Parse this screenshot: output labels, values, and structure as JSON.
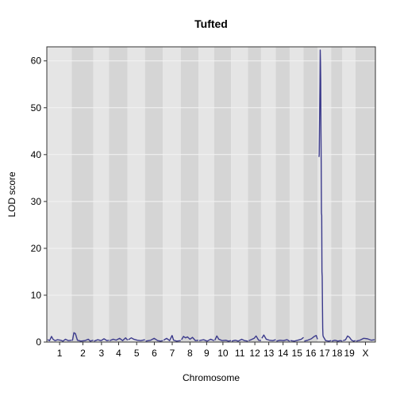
{
  "chart_data": {
    "type": "line",
    "title": "Tufted",
    "xlabel": "Chromosome",
    "ylabel": "LOD score",
    "ylim": [
      0,
      63
    ],
    "yticks": [
      0,
      10,
      20,
      30,
      40,
      50,
      60
    ],
    "grid": true,
    "chromosomes": [
      "1",
      "2",
      "3",
      "4",
      "5",
      "6",
      "7",
      "8",
      "9",
      "10",
      "11",
      "12",
      "13",
      "14",
      "15",
      "16",
      "17",
      "18",
      "19",
      "X"
    ],
    "chromosome_lengths_cM": [
      97,
      84,
      60,
      72,
      67,
      69,
      69,
      68,
      60,
      65,
      65,
      50,
      56,
      53,
      53,
      53,
      52,
      42,
      50,
      74
    ],
    "colors": {
      "line": "#3b3a8c",
      "band_light": "#e5e5e5",
      "band_dark": "#d5d5d5",
      "gridline": "#f4f4f4"
    },
    "series": [
      {
        "values_by_chromosome": [
          [
            [
              0,
              0.5
            ],
            [
              8,
              0.3
            ],
            [
              16,
              1.2
            ],
            [
              22,
              0.6
            ],
            [
              30,
              0.3
            ],
            [
              40,
              0.5
            ],
            [
              52,
              0.4
            ],
            [
              62,
              0.2
            ],
            [
              72,
              0.6
            ],
            [
              84,
              0.3
            ],
            [
              97,
              0.4
            ]
          ],
          [
            [
              0,
              0.3
            ],
            [
              6,
              2.0
            ],
            [
              12,
              1.8
            ],
            [
              20,
              0.4
            ],
            [
              34,
              0.2
            ],
            [
              50,
              0.3
            ],
            [
              64,
              0.6
            ],
            [
              72,
              0.2
            ],
            [
              84,
              0.4
            ]
          ],
          [
            [
              0,
              0.2
            ],
            [
              15,
              0.5
            ],
            [
              28,
              0.3
            ],
            [
              40,
              0.7
            ],
            [
              52,
              0.3
            ],
            [
              60,
              0.4
            ]
          ],
          [
            [
              0,
              0.3
            ],
            [
              14,
              0.6
            ],
            [
              26,
              0.4
            ],
            [
              40,
              0.8
            ],
            [
              52,
              0.3
            ],
            [
              64,
              0.9
            ],
            [
              72,
              0.4
            ]
          ],
          [
            [
              0,
              0.5
            ],
            [
              12,
              0.9
            ],
            [
              22,
              0.6
            ],
            [
              36,
              0.4
            ],
            [
              50,
              0.3
            ],
            [
              67,
              0.5
            ]
          ],
          [
            [
              0,
              0.2
            ],
            [
              20,
              0.4
            ],
            [
              34,
              0.8
            ],
            [
              48,
              0.3
            ],
            [
              60,
              0.2
            ],
            [
              69,
              0.3
            ]
          ],
          [
            [
              0,
              0.4
            ],
            [
              12,
              0.8
            ],
            [
              24,
              0.3
            ],
            [
              34,
              1.4
            ],
            [
              40,
              0.4
            ],
            [
              52,
              0.2
            ],
            [
              69,
              0.3
            ]
          ],
          [
            [
              0,
              0.5
            ],
            [
              8,
              1.2
            ],
            [
              16,
              0.9
            ],
            [
              24,
              1.1
            ],
            [
              34,
              0.6
            ],
            [
              44,
              1.0
            ],
            [
              56,
              0.3
            ],
            [
              68,
              0.4
            ]
          ],
          [
            [
              0,
              0.3
            ],
            [
              18,
              0.5
            ],
            [
              32,
              0.2
            ],
            [
              46,
              0.6
            ],
            [
              60,
              0.3
            ]
          ],
          [
            [
              0,
              0.4
            ],
            [
              8,
              1.3
            ],
            [
              16,
              0.6
            ],
            [
              30,
              0.3
            ],
            [
              44,
              0.4
            ],
            [
              54,
              0.2
            ],
            [
              65,
              0.3
            ]
          ],
          [
            [
              0,
              0.2
            ],
            [
              14,
              0.4
            ],
            [
              26,
              0.2
            ],
            [
              40,
              0.6
            ],
            [
              52,
              0.3
            ],
            [
              65,
              0.2
            ]
          ],
          [
            [
              0,
              0.3
            ],
            [
              10,
              0.5
            ],
            [
              22,
              0.8
            ],
            [
              30,
              1.3
            ],
            [
              40,
              0.4
            ],
            [
              50,
              0.3
            ]
          ],
          [
            [
              0,
              0.8
            ],
            [
              8,
              1.5
            ],
            [
              18,
              0.6
            ],
            [
              30,
              0.4
            ],
            [
              44,
              0.3
            ],
            [
              56,
              0.5
            ]
          ],
          [
            [
              0,
              0.2
            ],
            [
              14,
              0.4
            ],
            [
              28,
              0.3
            ],
            [
              42,
              0.5
            ],
            [
              53,
              0.2
            ]
          ],
          [
            [
              0,
              0.3
            ],
            [
              16,
              0.2
            ],
            [
              30,
              0.4
            ],
            [
              44,
              0.6
            ],
            [
              53,
              1.0
            ]
          ],
          [
            [
              0,
              0.2
            ],
            [
              14,
              0.4
            ],
            [
              28,
              0.7
            ],
            [
              40,
              1.2
            ],
            [
              48,
              1.4
            ],
            [
              53,
              0.6
            ]
          ],
          [
            [
              3,
              39.5
            ],
            [
              4,
              40.0
            ],
            [
              6,
              50
            ],
            [
              7,
              55
            ],
            [
              8,
              62.3
            ],
            [
              9,
              60
            ],
            [
              10,
              56
            ],
            [
              11,
              45
            ],
            [
              12,
              38
            ],
            [
              13,
              27.5
            ],
            [
              14,
              27
            ],
            [
              15,
              15
            ],
            [
              16,
              14
            ],
            [
              17,
              8
            ],
            [
              18,
              3
            ],
            [
              19,
              1.5
            ],
            [
              20,
              1.2
            ],
            [
              30,
              0.3
            ],
            [
              42,
              0.2
            ],
            [
              52,
              0.3
            ]
          ],
          [
            [
              0,
              0.2
            ],
            [
              12,
              0.4
            ],
            [
              24,
              0.2
            ],
            [
              34,
              0.3
            ],
            [
              42,
              0.2
            ]
          ],
          [
            [
              0,
              0.3
            ],
            [
              10,
              0.5
            ],
            [
              18,
              1.3
            ],
            [
              26,
              1.0
            ],
            [
              34,
              0.4
            ],
            [
              42,
              0.2
            ],
            [
              50,
              0.3
            ]
          ],
          [
            [
              0,
              0.2
            ],
            [
              15,
              0.4
            ],
            [
              30,
              0.8
            ],
            [
              45,
              0.7
            ],
            [
              60,
              0.4
            ],
            [
              74,
              0.5
            ]
          ]
        ]
      }
    ]
  }
}
